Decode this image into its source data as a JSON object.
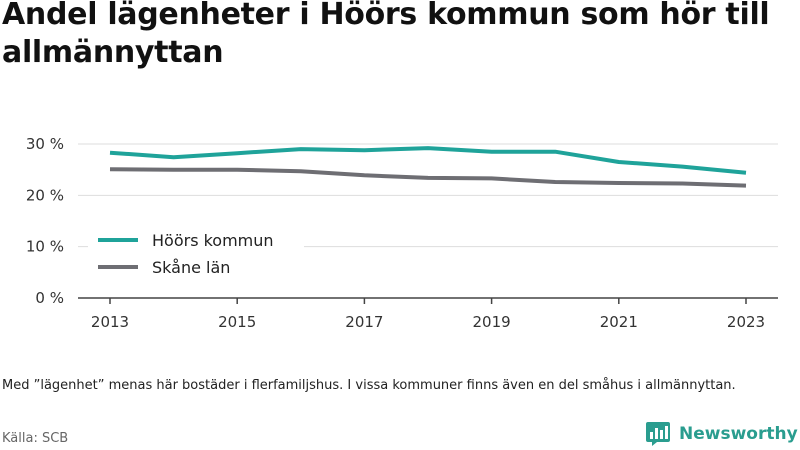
{
  "title": "Andel lägenheter i Höörs kommun som hör till allmännyttan",
  "footnote": "Med ”lägenhet” menas här bostäder i flerfamiljshus. I vissa kommuner finns även en del småhus i allmännyttan.",
  "source": "Källa: SCB",
  "brand": {
    "name": "Newsworthy",
    "icon": "newsworthy-logo-icon"
  },
  "colors": {
    "hoor": "#1fa39a",
    "skane": "#6e6e73",
    "axis": "#444444",
    "grid": "#dddddd"
  },
  "chart_data": {
    "type": "line",
    "x": [
      2013,
      2014,
      2015,
      2016,
      2017,
      2018,
      2019,
      2020,
      2021,
      2022,
      2023
    ],
    "x_tick_labels": [
      "2013",
      "2015",
      "2017",
      "2019",
      "2021",
      "2023"
    ],
    "y_tick_labels": [
      "0 %",
      "10 %",
      "20 %",
      "30 %"
    ],
    "y_ticks": [
      0,
      10,
      20,
      30
    ],
    "ylim": [
      0,
      30
    ],
    "grid": true,
    "legend_position": "bottom-left",
    "series": [
      {
        "name": "Höörs kommun",
        "values": [
          28.3,
          27.4,
          28.2,
          29.0,
          28.8,
          29.2,
          28.5,
          28.5,
          26.5,
          25.6,
          24.4
        ]
      },
      {
        "name": "Skåne län",
        "values": [
          25.1,
          25.0,
          25.0,
          24.7,
          23.9,
          23.4,
          23.3,
          22.6,
          22.4,
          22.3,
          21.9
        ]
      }
    ]
  }
}
